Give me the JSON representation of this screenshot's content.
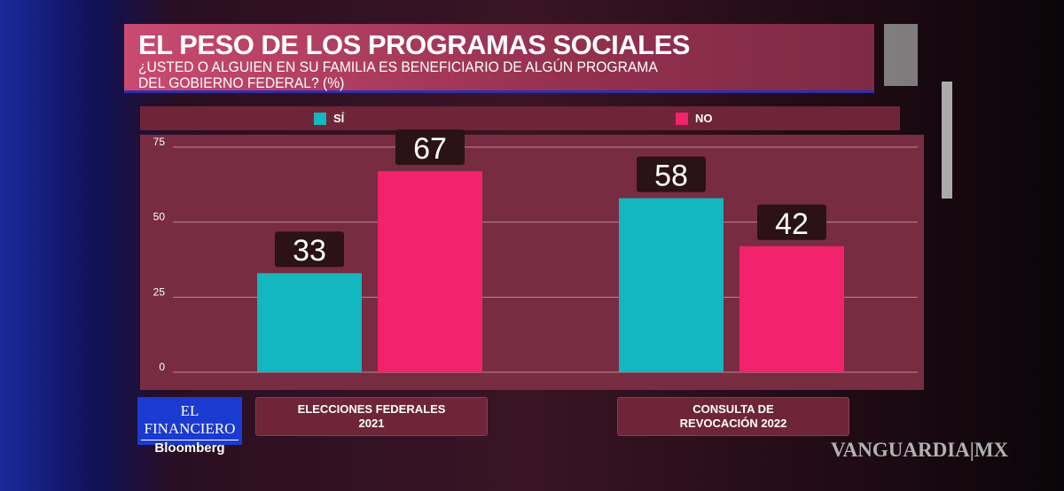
{
  "header": {
    "title": "EL PESO DE LOS PROGRAMAS SOCIALES",
    "subtitle_line1": "¿USTED O ALGUIEN EN SU FAMILIA ES BENEFICIARIO DE ALGÚN PROGRAMA",
    "subtitle_line2": "DEL GOBIERNO FEDERAL? (%)"
  },
  "branding": {
    "logo_top": "EL FINANCIERO",
    "logo_bottom": "Bloomberg",
    "watermark": "VANGUARDIA|MX"
  },
  "colors": {
    "si": "#12b7bf",
    "no": "#f2226c"
  },
  "chart_data": {
    "type": "bar",
    "title": "EL PESO DE LOS PROGRAMAS SOCIALES",
    "categories": [
      "ELECCIONES FEDERALES 2021",
      "CONSULTA DE REVOCACIÓN 2022"
    ],
    "category_lines": [
      [
        "ELECCIONES FEDERALES",
        "2021"
      ],
      [
        "CONSULTA DE",
        "REVOCACIÓN 2022"
      ]
    ],
    "series": [
      {
        "name": "SÍ",
        "values": [
          33,
          58
        ]
      },
      {
        "name": "NO",
        "values": [
          67,
          42
        ]
      }
    ],
    "yticks": [
      0,
      25,
      50,
      75
    ],
    "ylim": [
      0,
      75
    ],
    "grid": true,
    "legend": "top"
  }
}
